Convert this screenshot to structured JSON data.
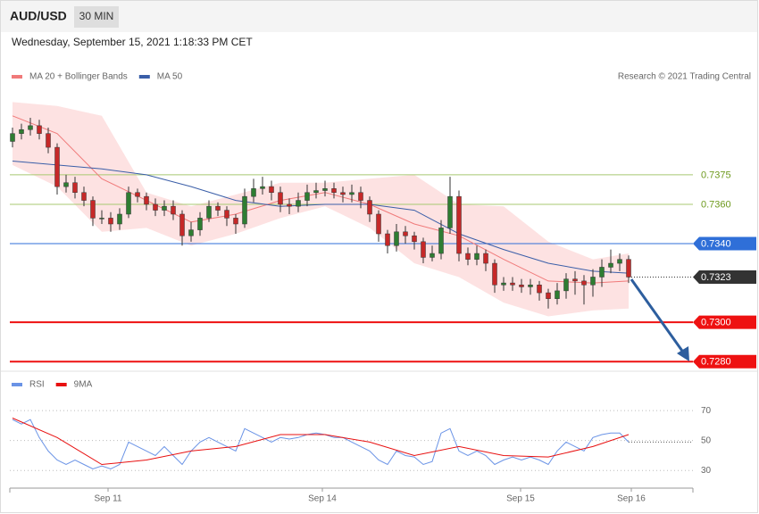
{
  "chart_data": [
    {
      "type": "candlestick",
      "title": "AUD/USD",
      "timeframe": "30 MIN",
      "subtitle": "Wednesday, September 15, 2021 1:18:33 PM CET",
      "credit": "Research © 2021 Trading Central",
      "xlim": [
        -0.3,
        76.2
      ],
      "ylim": [
        0.7276,
        0.7419
      ],
      "up_color": "#2e7d32",
      "down_color": "#c62828",
      "open": [
        0.7392,
        0.7396,
        0.7398,
        0.74,
        0.7396,
        0.7389,
        0.7369,
        0.7371,
        0.7366,
        0.7362,
        0.7353,
        0.7353,
        0.735,
        0.7355,
        0.7366,
        0.7364,
        0.736,
        0.7357,
        0.7359,
        0.7355,
        0.7344,
        0.7347,
        0.7353,
        0.7359,
        0.7357,
        0.7353,
        0.735,
        0.7364,
        0.7368,
        0.7369,
        0.7366,
        0.736,
        0.7359,
        0.7362,
        0.7366,
        0.7367,
        0.7368,
        0.7366,
        0.7365,
        0.7366,
        0.7362,
        0.7355,
        0.7345,
        0.7339,
        0.7346,
        0.7344,
        0.7341,
        0.7333,
        0.7335,
        0.7348,
        0.7364,
        0.7335,
        0.7332,
        0.7335,
        0.733,
        0.7319,
        0.732,
        0.7319,
        0.7318,
        0.7319,
        0.7315,
        0.7312,
        0.7316,
        0.7322,
        0.7321,
        0.7319,
        0.7323,
        0.7328,
        0.733,
        0.7332
      ],
      "high": [
        0.7399,
        0.7401,
        0.7404,
        0.7403,
        0.7399,
        0.7391,
        0.7375,
        0.7374,
        0.7369,
        0.7364,
        0.7357,
        0.7356,
        0.7358,
        0.7369,
        0.7368,
        0.7366,
        0.7363,
        0.7362,
        0.7362,
        0.7357,
        0.7351,
        0.7356,
        0.7362,
        0.7361,
        0.7359,
        0.7355,
        0.7368,
        0.7373,
        0.7374,
        0.7372,
        0.7369,
        0.7363,
        0.7366,
        0.737,
        0.7371,
        0.7372,
        0.7371,
        0.7369,
        0.737,
        0.7369,
        0.7364,
        0.7357,
        0.7347,
        0.735,
        0.7349,
        0.7346,
        0.7343,
        0.7339,
        0.7352,
        0.7374,
        0.7367,
        0.7338,
        0.7339,
        0.7337,
        0.7332,
        0.7323,
        0.7323,
        0.7322,
        0.7322,
        0.7321,
        0.7317,
        0.732,
        0.7325,
        0.7326,
        0.7324,
        0.7327,
        0.7332,
        0.7337,
        0.7335,
        0.7334
      ],
      "low": [
        0.7389,
        0.7393,
        0.7395,
        0.7393,
        0.7386,
        0.7365,
        0.7366,
        0.7363,
        0.7359,
        0.7349,
        0.735,
        0.7346,
        0.7347,
        0.7353,
        0.7361,
        0.7357,
        0.7354,
        0.7354,
        0.7352,
        0.7339,
        0.7341,
        0.7344,
        0.7351,
        0.7354,
        0.7349,
        0.7345,
        0.7348,
        0.7361,
        0.7365,
        0.7362,
        0.7356,
        0.7355,
        0.7356,
        0.7359,
        0.7363,
        0.7364,
        0.7363,
        0.7361,
        0.7361,
        0.7358,
        0.7351,
        0.7341,
        0.7335,
        0.7336,
        0.734,
        0.7337,
        0.733,
        0.7331,
        0.7332,
        0.7345,
        0.7331,
        0.7329,
        0.7329,
        0.7326,
        0.7315,
        0.7316,
        0.7316,
        0.7315,
        0.7314,
        0.7311,
        0.7307,
        0.7309,
        0.7312,
        0.7314,
        0.7309,
        0.7313,
        0.7318,
        0.7325,
        0.7326,
        0.732
      ],
      "close": [
        0.7396,
        0.7398,
        0.74,
        0.7396,
        0.7389,
        0.7369,
        0.7371,
        0.7366,
        0.7362,
        0.7353,
        0.7353,
        0.735,
        0.7355,
        0.7366,
        0.7364,
        0.736,
        0.7357,
        0.7359,
        0.7355,
        0.7344,
        0.7347,
        0.7353,
        0.7359,
        0.7357,
        0.7353,
        0.735,
        0.7364,
        0.7368,
        0.7369,
        0.7366,
        0.736,
        0.7359,
        0.7362,
        0.7366,
        0.7367,
        0.7368,
        0.7366,
        0.7365,
        0.7366,
        0.7362,
        0.7355,
        0.7345,
        0.7339,
        0.7346,
        0.7344,
        0.7341,
        0.7333,
        0.7335,
        0.7348,
        0.7364,
        0.7335,
        0.7332,
        0.7335,
        0.733,
        0.7319,
        0.732,
        0.7319,
        0.7318,
        0.7319,
        0.7315,
        0.7312,
        0.7316,
        0.7322,
        0.7321,
        0.7319,
        0.7323,
        0.7328,
        0.733,
        0.7332,
        0.7323
      ],
      "series": [
        {
          "name": "MA 20 + Bollinger Bands",
          "color": "#f07a7a",
          "band_color": "#fde2e2",
          "x": [
            0,
            5,
            10,
            15,
            20,
            25,
            30,
            35,
            40,
            45,
            50,
            55,
            60,
            65,
            69
          ],
          "values": [
            0.7405,
            0.7396,
            0.7373,
            0.7362,
            0.7351,
            0.7355,
            0.7362,
            0.7366,
            0.736,
            0.735,
            0.7344,
            0.7332,
            0.7321,
            0.732,
            0.7321
          ],
          "upper": [
            0.7412,
            0.741,
            0.7405,
            0.7366,
            0.7359,
            0.7365,
            0.7371,
            0.7371,
            0.7373,
            0.7375,
            0.736,
            0.7359,
            0.7341,
            0.7332,
            0.7335
          ],
          "lower": [
            0.738,
            0.7369,
            0.7346,
            0.7348,
            0.7339,
            0.7345,
            0.7353,
            0.7359,
            0.7348,
            0.733,
            0.7323,
            0.731,
            0.7303,
            0.7306,
            0.7307
          ]
        },
        {
          "name": "MA 50",
          "color": "#3a5ea8",
          "x": [
            0,
            5,
            10,
            15,
            20,
            25,
            30,
            35,
            40,
            45,
            50,
            55,
            60,
            65,
            69
          ],
          "values": [
            0.7382,
            0.738,
            0.7378,
            0.7375,
            0.7369,
            0.7362,
            0.7359,
            0.736,
            0.736,
            0.7357,
            0.7345,
            0.7337,
            0.733,
            0.7326,
            0.7325
          ]
        }
      ],
      "levels": [
        {
          "value": 0.7375,
          "color": "#a8c870",
          "text_color": "#6e9a1e",
          "style": "plain"
        },
        {
          "value": 0.736,
          "label": "0.7360",
          "color": "#a8c870",
          "text_color": "#6e9a1e",
          "style": "plain"
        },
        {
          "value": 0.734,
          "label": "0.7340",
          "color": "#2f6fd8",
          "text_color": "#ffffff",
          "style": "box"
        },
        {
          "value": 0.7323,
          "color": "#333333",
          "text_color": "#ffffff",
          "style": "current"
        },
        {
          "value": 0.73,
          "label": "0.7300",
          "color": "#ee1111",
          "text_color": "#ffffff",
          "style": "box"
        },
        {
          "value": 0.728,
          "label": "0.7280",
          "color": "#ee1111",
          "text_color": "#ffffff",
          "style": "box"
        }
      ]
    },
    {
      "type": "line",
      "xlim": [
        -0.3,
        76.2
      ],
      "ylim": [
        20,
        82
      ],
      "yticks": [
        70,
        50,
        30
      ],
      "xticks": [
        {
          "value": 10.7,
          "label": "Sep 11"
        },
        {
          "value": 34.7,
          "label": "Sep 14"
        },
        {
          "value": 56.9,
          "label": "Sep 15"
        },
        {
          "value": 69.3,
          "label": "Sep 16"
        }
      ],
      "series": [
        {
          "name": "RSI",
          "color": "#6a93e6",
          "values": [
            64,
            61,
            64,
            52,
            43,
            37,
            34,
            37,
            34,
            31,
            33,
            31,
            34,
            49,
            46,
            43,
            40,
            46,
            40,
            34,
            43,
            49,
            52,
            49,
            46,
            43,
            58,
            55,
            52,
            49,
            52,
            51,
            52,
            54,
            55,
            54,
            52,
            52,
            49,
            46,
            43,
            37,
            34,
            43,
            40,
            39,
            34,
            36,
            55,
            58,
            43,
            40,
            43,
            40,
            34,
            37,
            39,
            37,
            39,
            37,
            34,
            43,
            49,
            46,
            43,
            52,
            54,
            55,
            55,
            49
          ]
        },
        {
          "name": "9MA",
          "color": "#e81010",
          "x": [
            0,
            5,
            10,
            15,
            20,
            25,
            30,
            35,
            40,
            45,
            50,
            55,
            60,
            65,
            69
          ],
          "values": [
            65,
            52,
            34,
            37,
            43,
            46,
            54,
            54,
            49,
            40,
            46,
            40,
            39,
            46,
            54
          ]
        }
      ]
    }
  ]
}
